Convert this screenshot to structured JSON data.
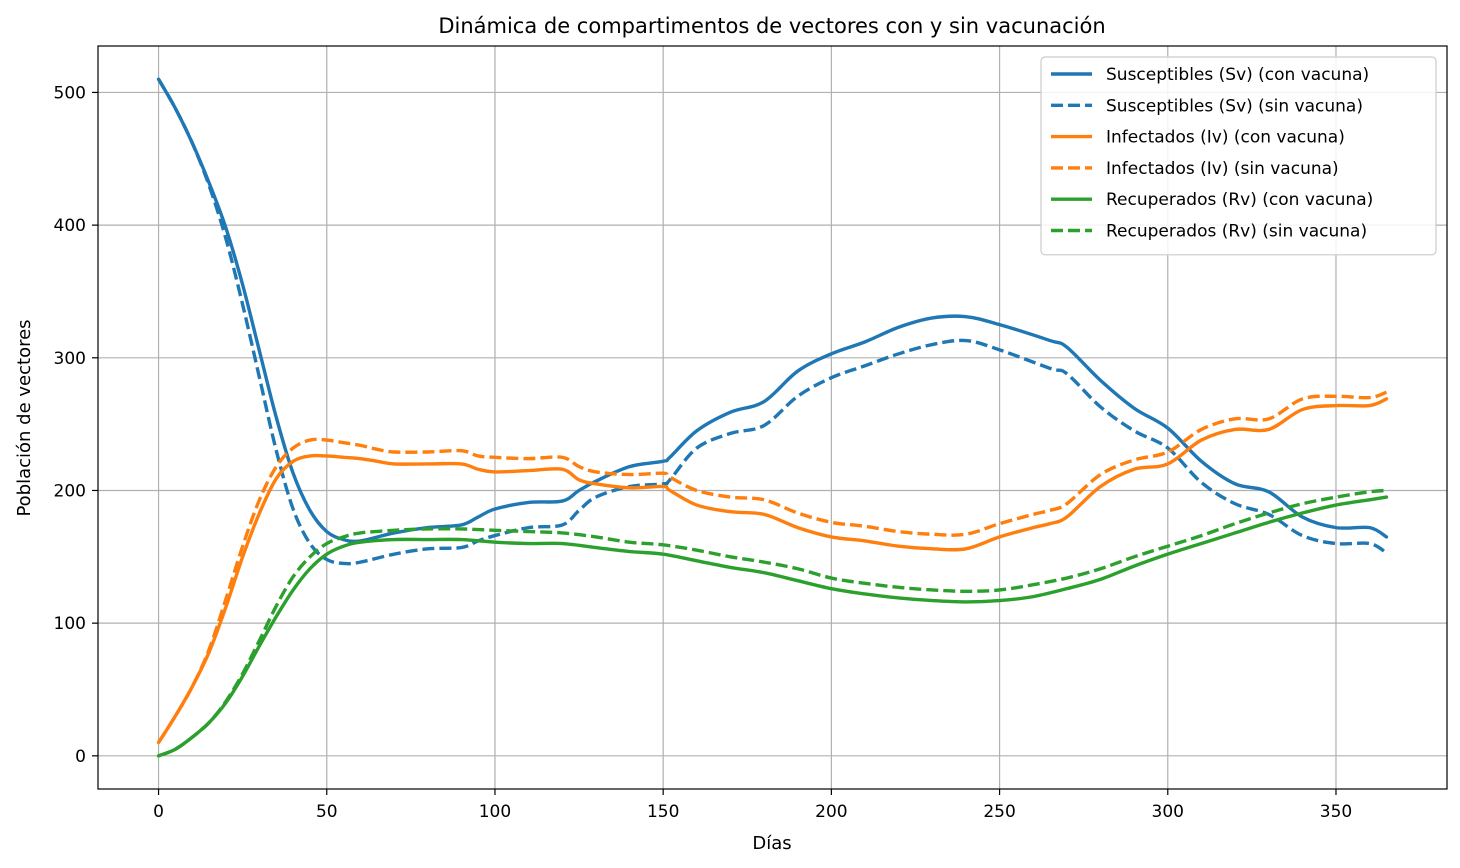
{
  "chart_data": {
    "type": "line",
    "title": "Dinámica de compartimentos de vectores con y sin vacunación",
    "xlabel": "Días",
    "ylabel": "Población de vectores",
    "xlim": [
      -18,
      383
    ],
    "ylim": [
      -25,
      535
    ],
    "xticks": [
      0,
      50,
      100,
      150,
      200,
      250,
      300,
      350
    ],
    "yticks": [
      0,
      100,
      200,
      300,
      400,
      500
    ],
    "grid": true,
    "legend_position": "top-right",
    "series": [
      {
        "name": "Susceptibles (Sv) (con vacuna)",
        "color": "#1f77b4",
        "style": "solid",
        "x": [
          0,
          5,
          10,
          15,
          20,
          25,
          30,
          35,
          40,
          45,
          50,
          55,
          60,
          70,
          80,
          90,
          95,
          100,
          110,
          120,
          125,
          130,
          140,
          150,
          152,
          160,
          170,
          180,
          190,
          200,
          210,
          220,
          230,
          240,
          250,
          265,
          270,
          280,
          290,
          300,
          310,
          320,
          330,
          340,
          350,
          360,
          365
        ],
        "y": [
          510,
          488,
          462,
          432,
          398,
          355,
          305,
          255,
          213,
          185,
          169,
          163,
          162,
          168,
          172,
          174,
          180,
          186,
          191,
          192,
          200,
          207,
          218,
          222,
          225,
          245,
          259,
          267,
          290,
          303,
          312,
          323,
          330,
          331,
          325,
          313,
          308,
          283,
          262,
          247,
          222,
          205,
          199,
          180,
          172,
          172,
          165
        ]
      },
      {
        "name": "Susceptibles (Sv) (sin vacuna)",
        "color": "#1f77b4",
        "style": "dashed",
        "x": [
          0,
          5,
          10,
          15,
          20,
          25,
          30,
          35,
          40,
          45,
          50,
          55,
          60,
          70,
          80,
          90,
          95,
          100,
          110,
          120,
          125,
          130,
          140,
          150,
          152,
          160,
          170,
          180,
          190,
          200,
          210,
          220,
          230,
          240,
          250,
          265,
          270,
          280,
          290,
          300,
          310,
          320,
          330,
          340,
          350,
          360,
          365
        ],
        "y": [
          510,
          488,
          462,
          430,
          390,
          340,
          285,
          230,
          186,
          160,
          148,
          145,
          146,
          152,
          156,
          157,
          162,
          166,
          172,
          174,
          185,
          195,
          203,
          205,
          208,
          232,
          243,
          249,
          271,
          285,
          294,
          303,
          310,
          313,
          306,
          292,
          288,
          263,
          245,
          232,
          206,
          190,
          182,
          166,
          160,
          160,
          153
        ]
      },
      {
        "name": "Infectados (Iv) (con vacuna)",
        "color": "#ff7f0e",
        "style": "solid",
        "x": [
          0,
          5,
          10,
          15,
          20,
          25,
          30,
          35,
          40,
          45,
          50,
          55,
          60,
          65,
          70,
          80,
          90,
          95,
          100,
          110,
          120,
          125,
          130,
          140,
          150,
          152,
          160,
          170,
          180,
          190,
          200,
          210,
          220,
          230,
          240,
          250,
          260,
          265,
          270,
          280,
          290,
          300,
          310,
          320,
          330,
          340,
          350,
          360,
          365
        ],
        "y": [
          10,
          30,
          52,
          78,
          112,
          150,
          183,
          209,
          222,
          226,
          226,
          225,
          224,
          222,
          220,
          220,
          220,
          216,
          214,
          215,
          216,
          208,
          205,
          202,
          203,
          200,
          189,
          184,
          182,
          172,
          165,
          162,
          158,
          156,
          156,
          165,
          172,
          175,
          180,
          203,
          216,
          220,
          238,
          246,
          246,
          261,
          264,
          264,
          269
        ]
      },
      {
        "name": "Infectados (Iv) (sin vacuna)",
        "color": "#ff7f0e",
        "style": "dashed",
        "x": [
          0,
          5,
          10,
          15,
          20,
          25,
          30,
          35,
          40,
          45,
          50,
          55,
          60,
          65,
          70,
          80,
          90,
          95,
          100,
          110,
          120,
          125,
          130,
          140,
          150,
          152,
          160,
          170,
          180,
          190,
          200,
          210,
          220,
          230,
          240,
          250,
          260,
          265,
          270,
          280,
          290,
          300,
          310,
          320,
          330,
          340,
          350,
          360,
          365
        ],
        "y": [
          10,
          30,
          52,
          80,
          118,
          158,
          193,
          218,
          232,
          238,
          238,
          236,
          234,
          231,
          229,
          229,
          230,
          226,
          225,
          224,
          225,
          218,
          214,
          212,
          213,
          210,
          200,
          195,
          193,
          183,
          176,
          173,
          169,
          167,
          167,
          175,
          182,
          185,
          190,
          212,
          223,
          229,
          246,
          254,
          254,
          269,
          271,
          270,
          274
        ]
      },
      {
        "name": "Recuperados (Rv) (con vacuna)",
        "color": "#2ca02c",
        "style": "solid",
        "x": [
          0,
          5,
          10,
          15,
          20,
          25,
          30,
          35,
          40,
          45,
          50,
          55,
          60,
          70,
          80,
          90,
          100,
          110,
          120,
          130,
          140,
          150,
          160,
          170,
          180,
          190,
          200,
          210,
          220,
          230,
          240,
          250,
          260,
          270,
          280,
          290,
          300,
          310,
          320,
          330,
          340,
          350,
          360,
          365
        ],
        "y": [
          0,
          5,
          14,
          25,
          40,
          60,
          83,
          105,
          125,
          141,
          152,
          158,
          161,
          163,
          163,
          163,
          161,
          160,
          160,
          157,
          154,
          152,
          147,
          142,
          138,
          132,
          126,
          122,
          119,
          117,
          116,
          117,
          120,
          126,
          133,
          143,
          152,
          160,
          168,
          176,
          183,
          189,
          193,
          195
        ]
      },
      {
        "name": "Recuperados (Rv) (sin vacuna)",
        "color": "#2ca02c",
        "style": "dashed",
        "x": [
          0,
          5,
          10,
          15,
          20,
          25,
          30,
          35,
          40,
          45,
          50,
          55,
          60,
          70,
          80,
          90,
          100,
          110,
          120,
          130,
          140,
          150,
          160,
          170,
          180,
          190,
          200,
          210,
          220,
          230,
          240,
          250,
          260,
          270,
          280,
          290,
          300,
          310,
          320,
          330,
          340,
          350,
          360,
          365
        ],
        "y": [
          0,
          5,
          14,
          25,
          41,
          62,
          87,
          113,
          135,
          150,
          160,
          165,
          168,
          170,
          171,
          171,
          170,
          169,
          168,
          165,
          161,
          159,
          155,
          150,
          146,
          141,
          134,
          130,
          127,
          125,
          124,
          125,
          129,
          134,
          141,
          150,
          158,
          166,
          175,
          183,
          190,
          195,
          199,
          200
        ]
      }
    ]
  }
}
